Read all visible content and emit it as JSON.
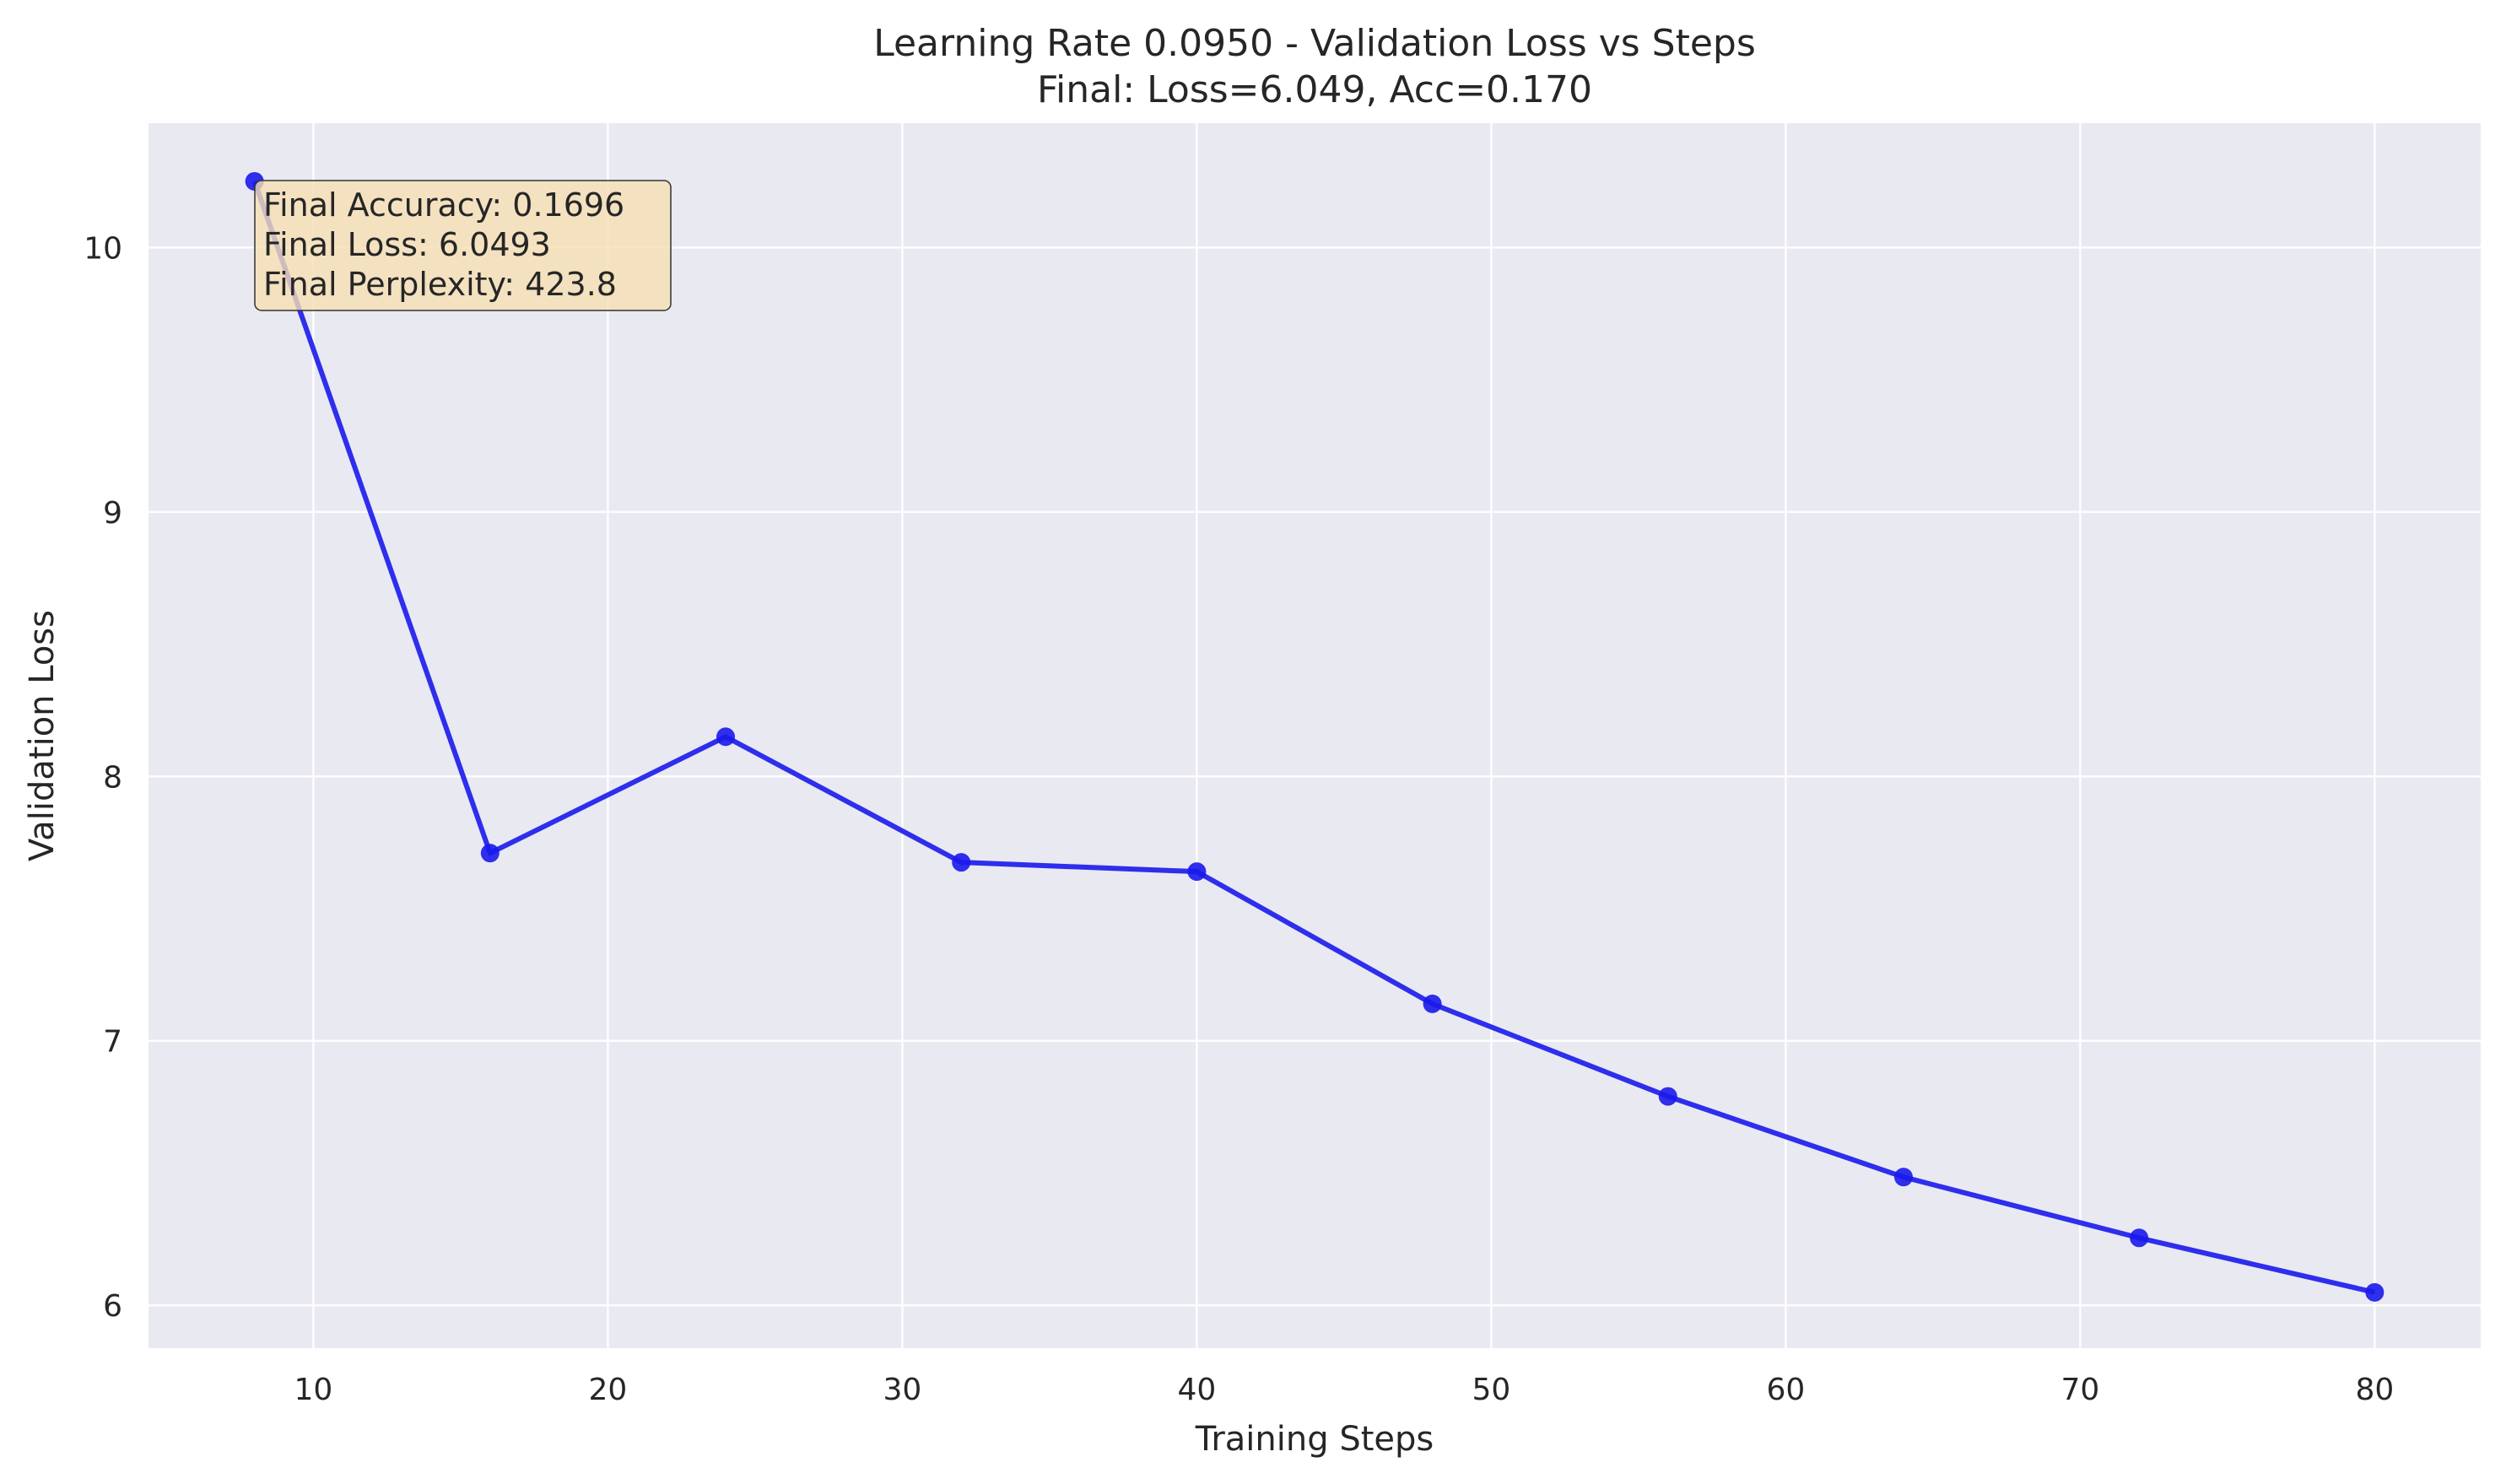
{
  "chart_data": {
    "type": "line",
    "title": "Learning Rate 0.0950 - Validation Loss vs Steps",
    "subtitle": "Final: Loss=6.049, Acc=0.170",
    "xlabel": "Training Steps",
    "ylabel": "Validation Loss",
    "xlim": [
      4.4,
      83.6
    ],
    "ylim": [
      5.838,
      10.47
    ],
    "xticks": [
      10,
      20,
      30,
      40,
      50,
      60,
      70,
      80
    ],
    "yticks": [
      6,
      7,
      8,
      9,
      10
    ],
    "grid": true,
    "series": [
      {
        "color": "#1a1aeb",
        "x": [
          8,
          16,
          24,
          32,
          40,
          48,
          56,
          64,
          72,
          80
        ],
        "y": [
          10.25,
          7.71,
          8.15,
          7.675,
          7.64,
          7.14,
          6.79,
          6.485,
          6.255,
          6.049
        ]
      }
    ],
    "annotation": {
      "lines": [
        "Final Accuracy: 0.1696",
        "Final Loss: 6.0493",
        "Final Perplexity: 423.8"
      ],
      "background": "#f5deb3"
    },
    "colors": {
      "plot_background": "#e9e9f2",
      "grid": "#ffffff",
      "line": "#1a1aeb"
    }
  }
}
